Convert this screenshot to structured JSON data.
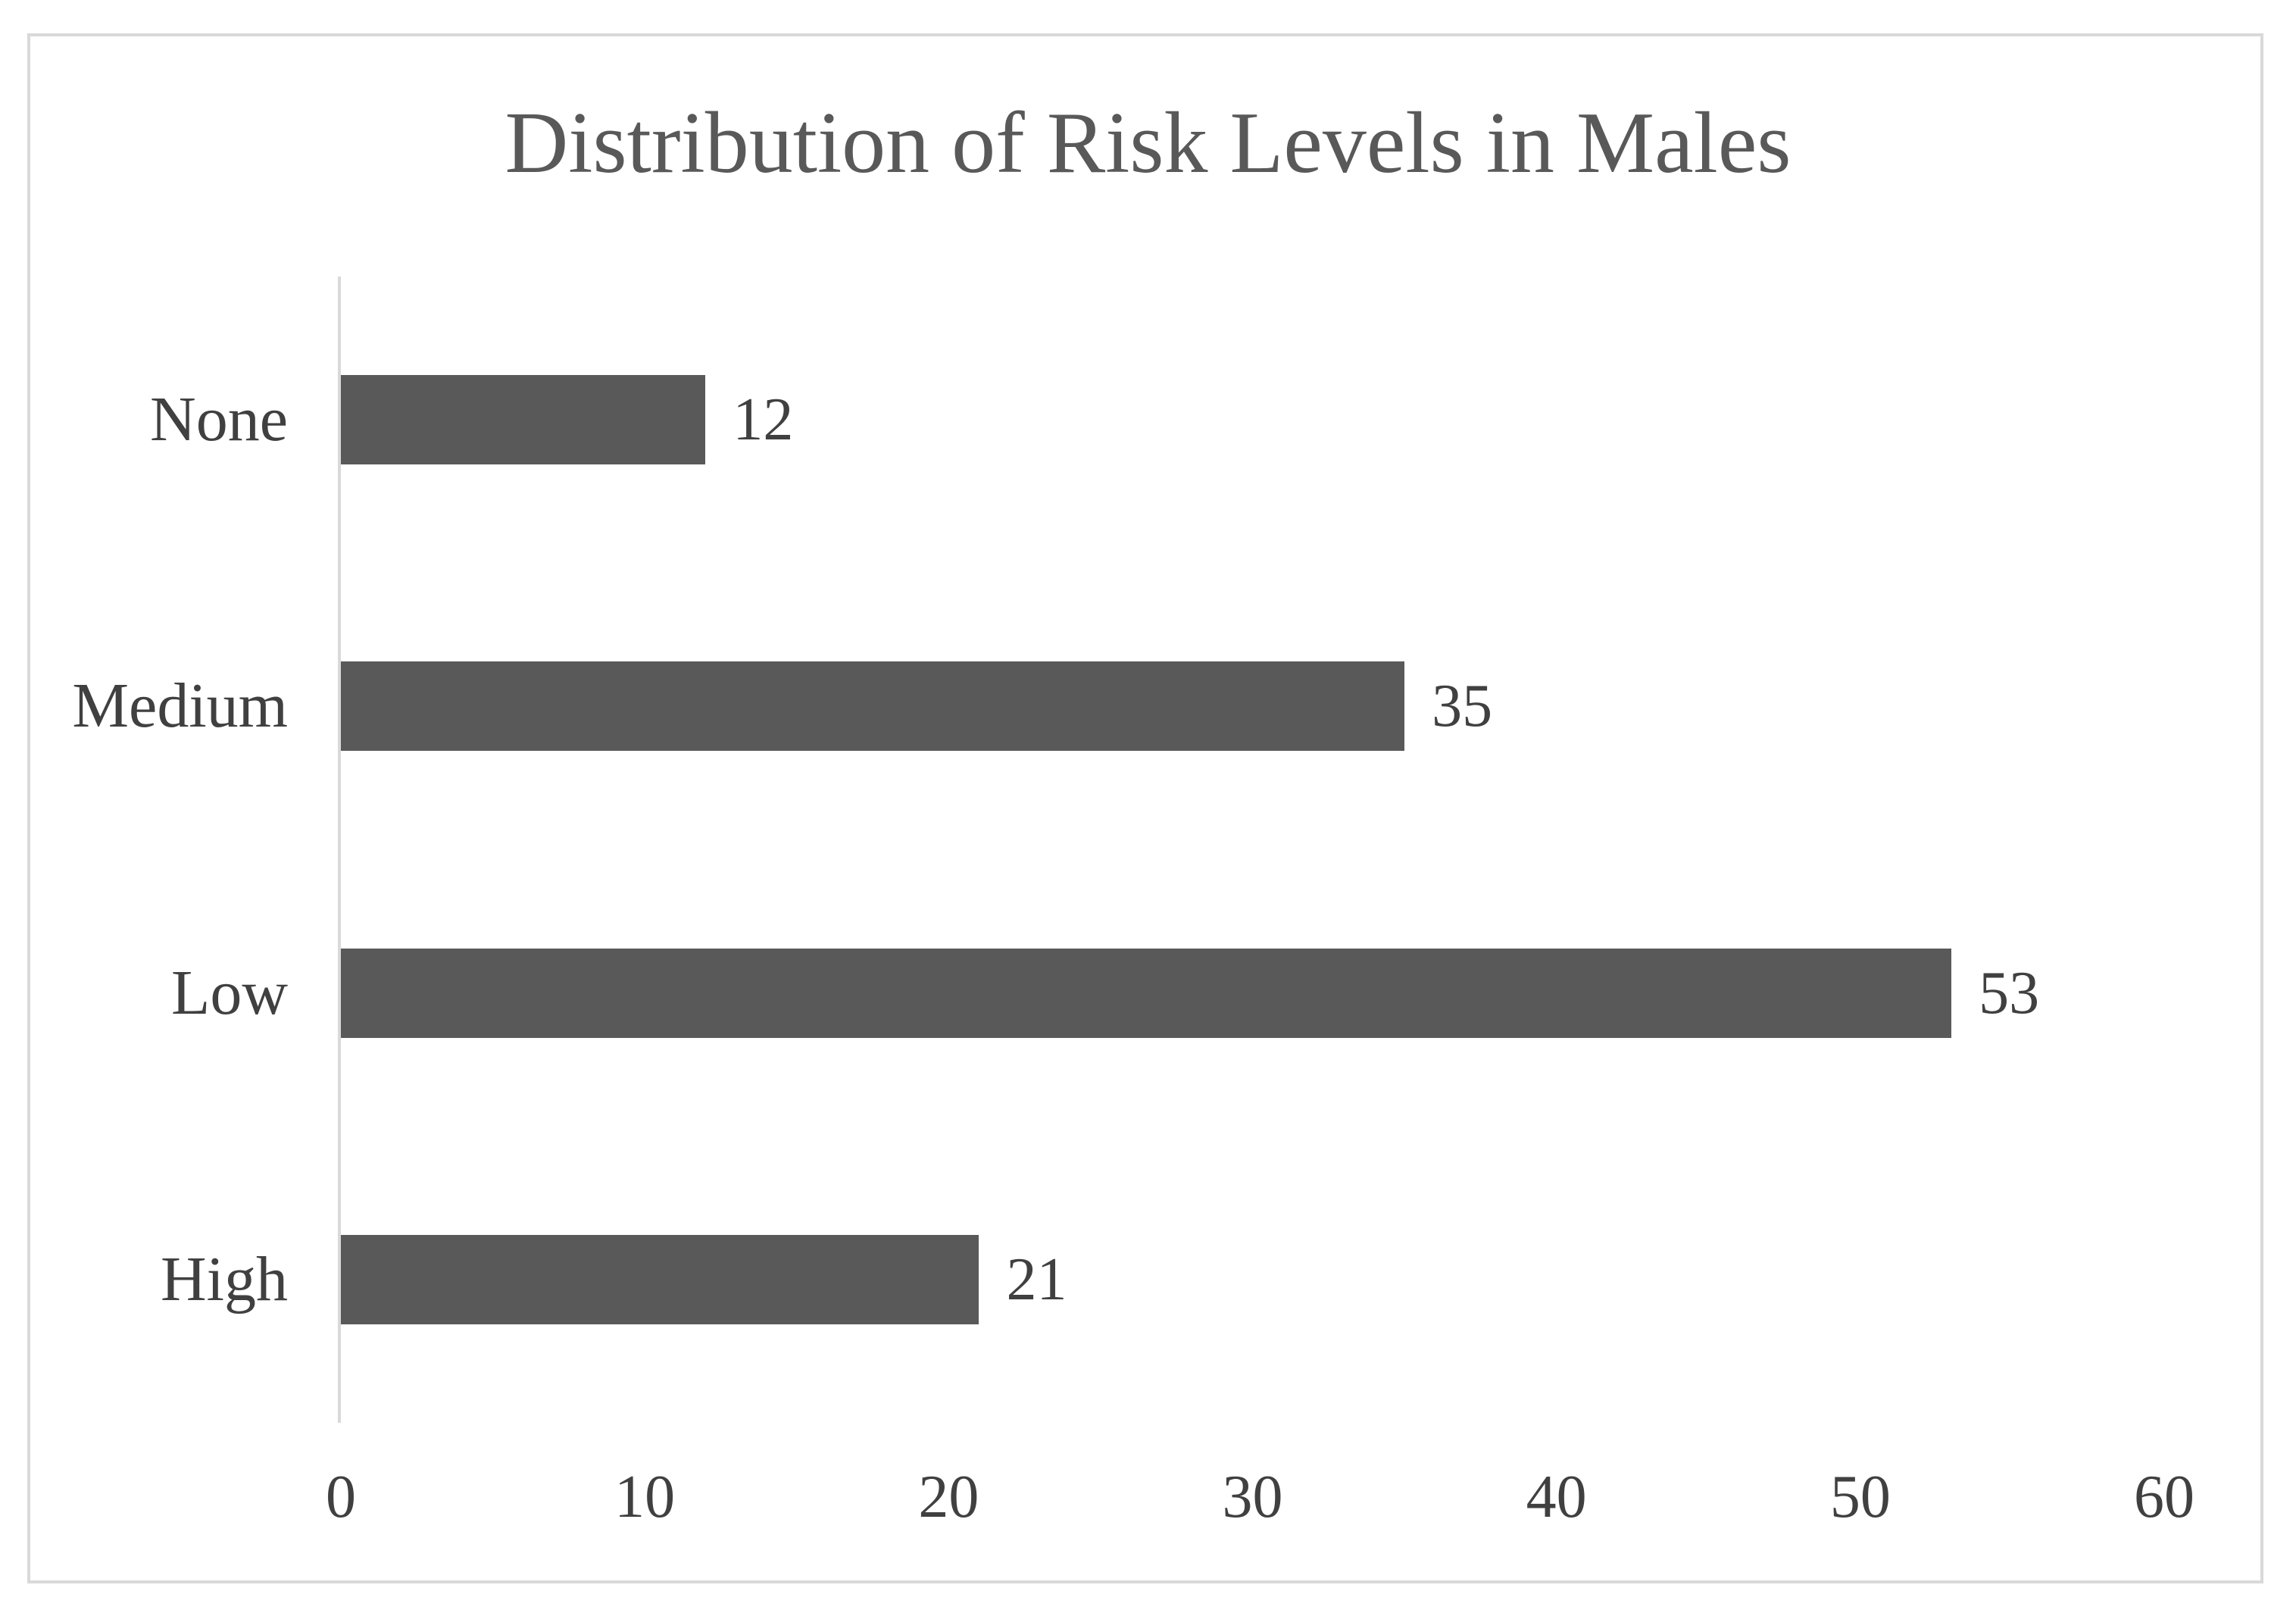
{
  "figure": {
    "background": "#ffffff",
    "frame_border_color": "#d9d9d9"
  },
  "chart_data": {
    "type": "bar",
    "orientation": "horizontal",
    "title": "Distribution of Risk Levels in Males",
    "categories": [
      "None",
      "Medium",
      "Low",
      "High"
    ],
    "values": [
      12,
      35,
      53,
      21
    ],
    "data_labels": [
      "12",
      "35",
      "53",
      "21"
    ],
    "xlabel": "",
    "ylabel": "",
    "xlim": [
      0,
      60
    ],
    "x_ticks": [
      "0",
      "10",
      "20",
      "30",
      "40",
      "50",
      "60"
    ],
    "grid": "off",
    "legend": "none",
    "colors": {
      "bar": "#595959",
      "title_text": "#595959",
      "label_text": "#404040",
      "axis_line": "#d9d9d9"
    }
  }
}
